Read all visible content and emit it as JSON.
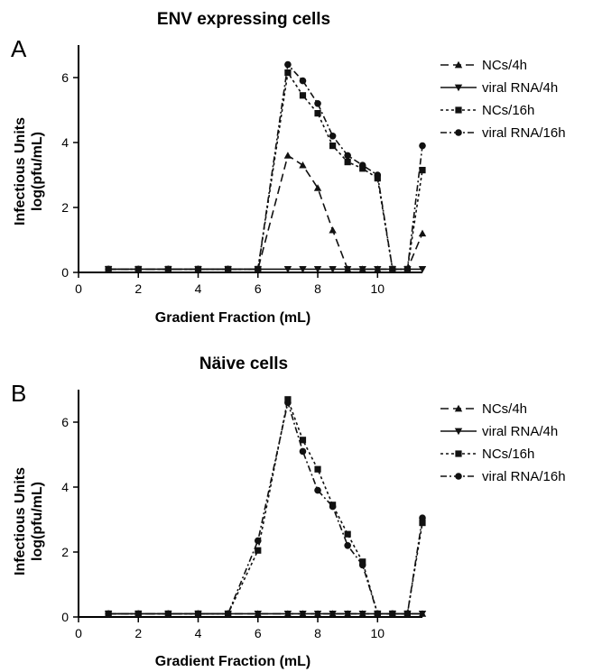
{
  "chart_data": [
    {
      "type": "line",
      "panel_label": "A",
      "title": "ENV expressing cells",
      "xlabel": "Gradient Fraction (mL)",
      "ylabel_line1": "Infectious Units",
      "ylabel_line2": "log(pfu/mL)",
      "xlim": [
        0,
        11.5
      ],
      "ylim": [
        0,
        7
      ],
      "xticks": [
        "0",
        "2",
        "4",
        "6",
        "8",
        "10"
      ],
      "xtick_values": [
        0,
        2,
        4,
        6,
        8,
        10
      ],
      "yticks": [
        "0",
        "2",
        "4",
        "6"
      ],
      "ytick_values": [
        0,
        2,
        4,
        6
      ],
      "grid": false,
      "legend_position": "right",
      "series": [
        {
          "name": "NCs/4h",
          "marker": "triangle-up",
          "line": "dashed",
          "x": [
            1,
            2,
            3,
            4,
            5,
            6,
            7,
            7.5,
            8,
            8.5,
            9,
            9.5,
            10,
            10.5,
            11,
            11.5
          ],
          "y": [
            0.1,
            0.1,
            0.1,
            0.1,
            0.1,
            0.1,
            3.6,
            3.3,
            2.6,
            1.3,
            0.1,
            0.1,
            0.1,
            0.1,
            0.1,
            1.2
          ]
        },
        {
          "name": "viral RNA/4h",
          "marker": "triangle-down",
          "line": "solid",
          "x": [
            1,
            2,
            3,
            4,
            5,
            6,
            7,
            7.5,
            8,
            8.5,
            9,
            9.5,
            10,
            10.5,
            11,
            11.5
          ],
          "y": [
            0.1,
            0.1,
            0.1,
            0.1,
            0.1,
            0.1,
            0.1,
            0.1,
            0.1,
            0.1,
            0.1,
            0.1,
            0.1,
            0.1,
            0.1,
            0.1
          ]
        },
        {
          "name": "NCs/16h",
          "marker": "square",
          "line": "dotted",
          "x": [
            1,
            2,
            3,
            4,
            5,
            6,
            7,
            7.5,
            8,
            8.5,
            9,
            9.5,
            10,
            10.5,
            11,
            11.5
          ],
          "y": [
            0.1,
            0.1,
            0.1,
            0.1,
            0.1,
            0.1,
            6.15,
            5.45,
            4.9,
            3.9,
            3.4,
            3.2,
            2.9,
            0.1,
            0.1,
            3.15
          ]
        },
        {
          "name": "viral RNA/16h",
          "marker": "circle",
          "line": "dashdot",
          "x": [
            1,
            2,
            3,
            4,
            5,
            6,
            7,
            7.5,
            8,
            8.5,
            9,
            9.5,
            10,
            10.5,
            11,
            11.5
          ],
          "y": [
            0.1,
            0.1,
            0.1,
            0.1,
            0.1,
            0.1,
            6.4,
            5.9,
            5.2,
            4.2,
            3.6,
            3.3,
            3.0,
            0.1,
            0.1,
            3.9
          ]
        }
      ]
    },
    {
      "type": "line",
      "panel_label": "B",
      "title": "Näive cells",
      "xlabel": "Gradient Fraction (mL)",
      "ylabel_line1": "Infectious Units",
      "ylabel_line2": "log(pfu/mL)",
      "xlim": [
        0,
        11.5
      ],
      "ylim": [
        0,
        7
      ],
      "xticks": [
        "0",
        "2",
        "4",
        "6",
        "8",
        "10"
      ],
      "xtick_values": [
        0,
        2,
        4,
        6,
        8,
        10
      ],
      "yticks": [
        "0",
        "2",
        "4",
        "6"
      ],
      "ytick_values": [
        0,
        2,
        4,
        6
      ],
      "grid": false,
      "legend_position": "right",
      "series": [
        {
          "name": "NCs/4h",
          "marker": "triangle-up",
          "line": "dashed",
          "x": [
            1,
            2,
            3,
            4,
            5,
            6,
            7,
            7.5,
            8,
            8.5,
            9,
            9.5,
            10,
            10.5,
            11,
            11.5
          ],
          "y": [
            0.1,
            0.1,
            0.1,
            0.1,
            0.1,
            0.1,
            0.1,
            0.1,
            0.1,
            0.1,
            0.1,
            0.1,
            0.1,
            0.1,
            0.1,
            0.1
          ]
        },
        {
          "name": "viral RNA/4h",
          "marker": "triangle-down",
          "line": "solid",
          "x": [
            1,
            2,
            3,
            4,
            5,
            6,
            7,
            7.5,
            8,
            8.5,
            9,
            9.5,
            10,
            10.5,
            11,
            11.5
          ],
          "y": [
            0.1,
            0.1,
            0.1,
            0.1,
            0.1,
            0.1,
            0.1,
            0.1,
            0.1,
            0.1,
            0.1,
            0.1,
            0.1,
            0.1,
            0.1,
            0.1
          ]
        },
        {
          "name": "NCs/16h",
          "marker": "square",
          "line": "dotted",
          "x": [
            1,
            2,
            3,
            4,
            5,
            6,
            7,
            7.5,
            8,
            8.5,
            9,
            9.5,
            10,
            10.5,
            11,
            11.5
          ],
          "y": [
            0.1,
            0.1,
            0.1,
            0.1,
            0.1,
            2.05,
            6.7,
            5.45,
            4.55,
            3.45,
            2.55,
            1.7,
            0.1,
            0.1,
            0.1,
            2.9
          ]
        },
        {
          "name": "viral RNA/16h",
          "marker": "circle",
          "line": "dashdot",
          "x": [
            1,
            2,
            3,
            4,
            5,
            6,
            7,
            7.5,
            8,
            8.5,
            9,
            9.5,
            10,
            10.5,
            11,
            11.5
          ],
          "y": [
            0.1,
            0.1,
            0.1,
            0.1,
            0.1,
            2.35,
            6.6,
            5.1,
            3.9,
            3.4,
            2.2,
            1.6,
            0.1,
            0.1,
            0.1,
            3.05
          ]
        }
      ]
    }
  ]
}
